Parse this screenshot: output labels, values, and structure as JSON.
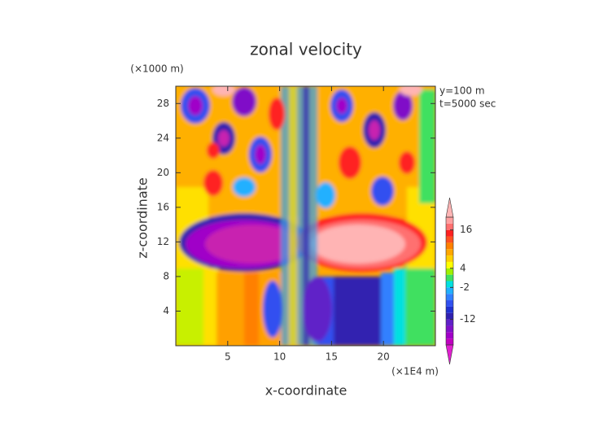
{
  "chart_data": {
    "type": "contour",
    "title": "zonal velocity",
    "x_label": "x-coordinate",
    "y_label": "z-coordinate",
    "x_unit": "(×1E4 m)",
    "y_unit": "(×1000 m)",
    "annotations": [
      "y=100 m",
      "t=5000 sec"
    ],
    "xlim": [
      0,
      25
    ],
    "xticks": [
      5,
      10,
      15,
      20
    ],
    "ylim": [
      0,
      30
    ],
    "yticks": [
      4,
      8,
      12,
      16,
      20,
      24,
      28
    ],
    "colorbar": {
      "levels": [
        -20,
        -18,
        -16,
        -14,
        -12,
        -10,
        -8,
        -6,
        -4,
        -2,
        0,
        2,
        4,
        6,
        8,
        10,
        12,
        14,
        16,
        18,
        20
      ],
      "colors": [
        "#c000c0",
        "#a000c8",
        "#8010c8",
        "#6020c8",
        "#3020b0",
        "#2030d0",
        "#3050f0",
        "#3080ff",
        "#20b0ff",
        "#00e0e0",
        "#40e060",
        "#a0f000",
        "#ffff00",
        "#ffd000",
        "#ffa800",
        "#ff8000",
        "#ff5020",
        "#ff2020",
        "#ff7070",
        "#ffa0a0"
      ],
      "under_color": "#e020d0",
      "over_color": "#ffb4b4",
      "ticks": [
        16,
        4,
        -2,
        -12
      ]
    }
  }
}
